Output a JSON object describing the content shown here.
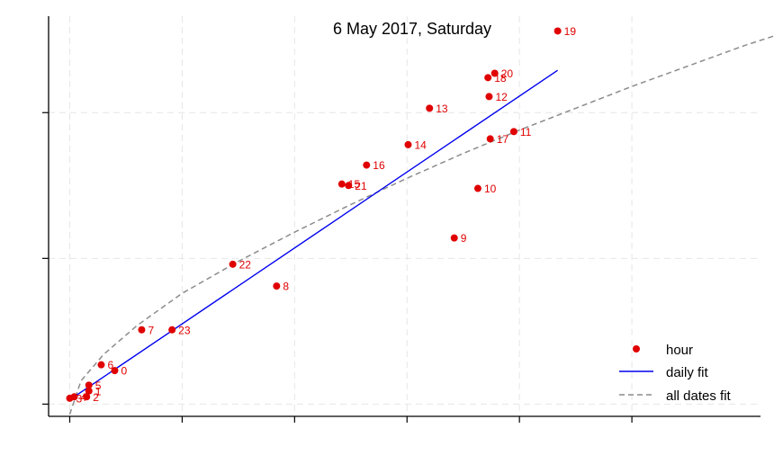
{
  "chart_data": {
    "type": "scatter",
    "title": "6 May 2017, Saturday",
    "xlabel": "",
    "ylabel": "",
    "xlim": [
      -0.1,
      6.2
    ],
    "ylim": [
      -0.09,
      2.6
    ],
    "xticks": [
      0,
      1,
      2,
      3,
      4,
      5
    ],
    "yticks": [
      0,
      1,
      2
    ],
    "grid": true,
    "legend_position": "bottom-right",
    "legend": [
      "hour",
      "daily fit",
      "all dates fit"
    ],
    "colors": {
      "points": "#e00000",
      "daily_fit": "#0000ee",
      "all_dates_fit": "#8c8c8c"
    },
    "points": [
      {
        "x": 0.4,
        "y": 0.23,
        "label": "0"
      },
      {
        "x": 0.17,
        "y": 0.09,
        "label": "1"
      },
      {
        "x": 0.15,
        "y": 0.05,
        "label": "2"
      },
      {
        "x": 0.0,
        "y": 0.04,
        "label": "3"
      },
      {
        "x": 0.04,
        "y": 0.05,
        "label": "4"
      },
      {
        "x": 0.17,
        "y": 0.13,
        "label": "5"
      },
      {
        "x": 0.28,
        "y": 0.27,
        "label": "6"
      },
      {
        "x": 0.64,
        "y": 0.51,
        "label": "7"
      },
      {
        "x": 1.84,
        "y": 0.81,
        "label": "8"
      },
      {
        "x": 3.42,
        "y": 1.14,
        "label": "9"
      },
      {
        "x": 3.63,
        "y": 1.48,
        "label": "10"
      },
      {
        "x": 3.95,
        "y": 1.87,
        "label": "11"
      },
      {
        "x": 3.73,
        "y": 2.11,
        "label": "12"
      },
      {
        "x": 3.2,
        "y": 2.03,
        "label": "13"
      },
      {
        "x": 3.01,
        "y": 1.78,
        "label": "14"
      },
      {
        "x": 2.42,
        "y": 1.51,
        "label": "15"
      },
      {
        "x": 2.64,
        "y": 1.64,
        "label": "16"
      },
      {
        "x": 3.74,
        "y": 1.82,
        "label": "17"
      },
      {
        "x": 3.72,
        "y": 2.24,
        "label": "18"
      },
      {
        "x": 4.34,
        "y": 2.56,
        "label": "19"
      },
      {
        "x": 3.78,
        "y": 2.27,
        "label": "20"
      },
      {
        "x": 2.48,
        "y": 1.5,
        "label": "21"
      },
      {
        "x": 1.45,
        "y": 0.96,
        "label": "22"
      },
      {
        "x": 0.91,
        "y": 0.51,
        "label": "23"
      }
    ],
    "daily_fit": {
      "x": [
        0.0,
        4.34
      ],
      "y": [
        0.03,
        2.29
      ]
    },
    "all_dates_fit": {
      "x": [
        0.0,
        0.1,
        0.3,
        0.6,
        1.0,
        1.5,
        2.0,
        2.5,
        3.0,
        3.5,
        4.0,
        4.5,
        5.0,
        5.5,
        6.0,
        6.4
      ],
      "y": [
        -0.07,
        0.16,
        0.34,
        0.54,
        0.76,
        0.98,
        1.18,
        1.37,
        1.55,
        1.72,
        1.88,
        2.03,
        2.18,
        2.32,
        2.46,
        2.56
      ]
    }
  }
}
